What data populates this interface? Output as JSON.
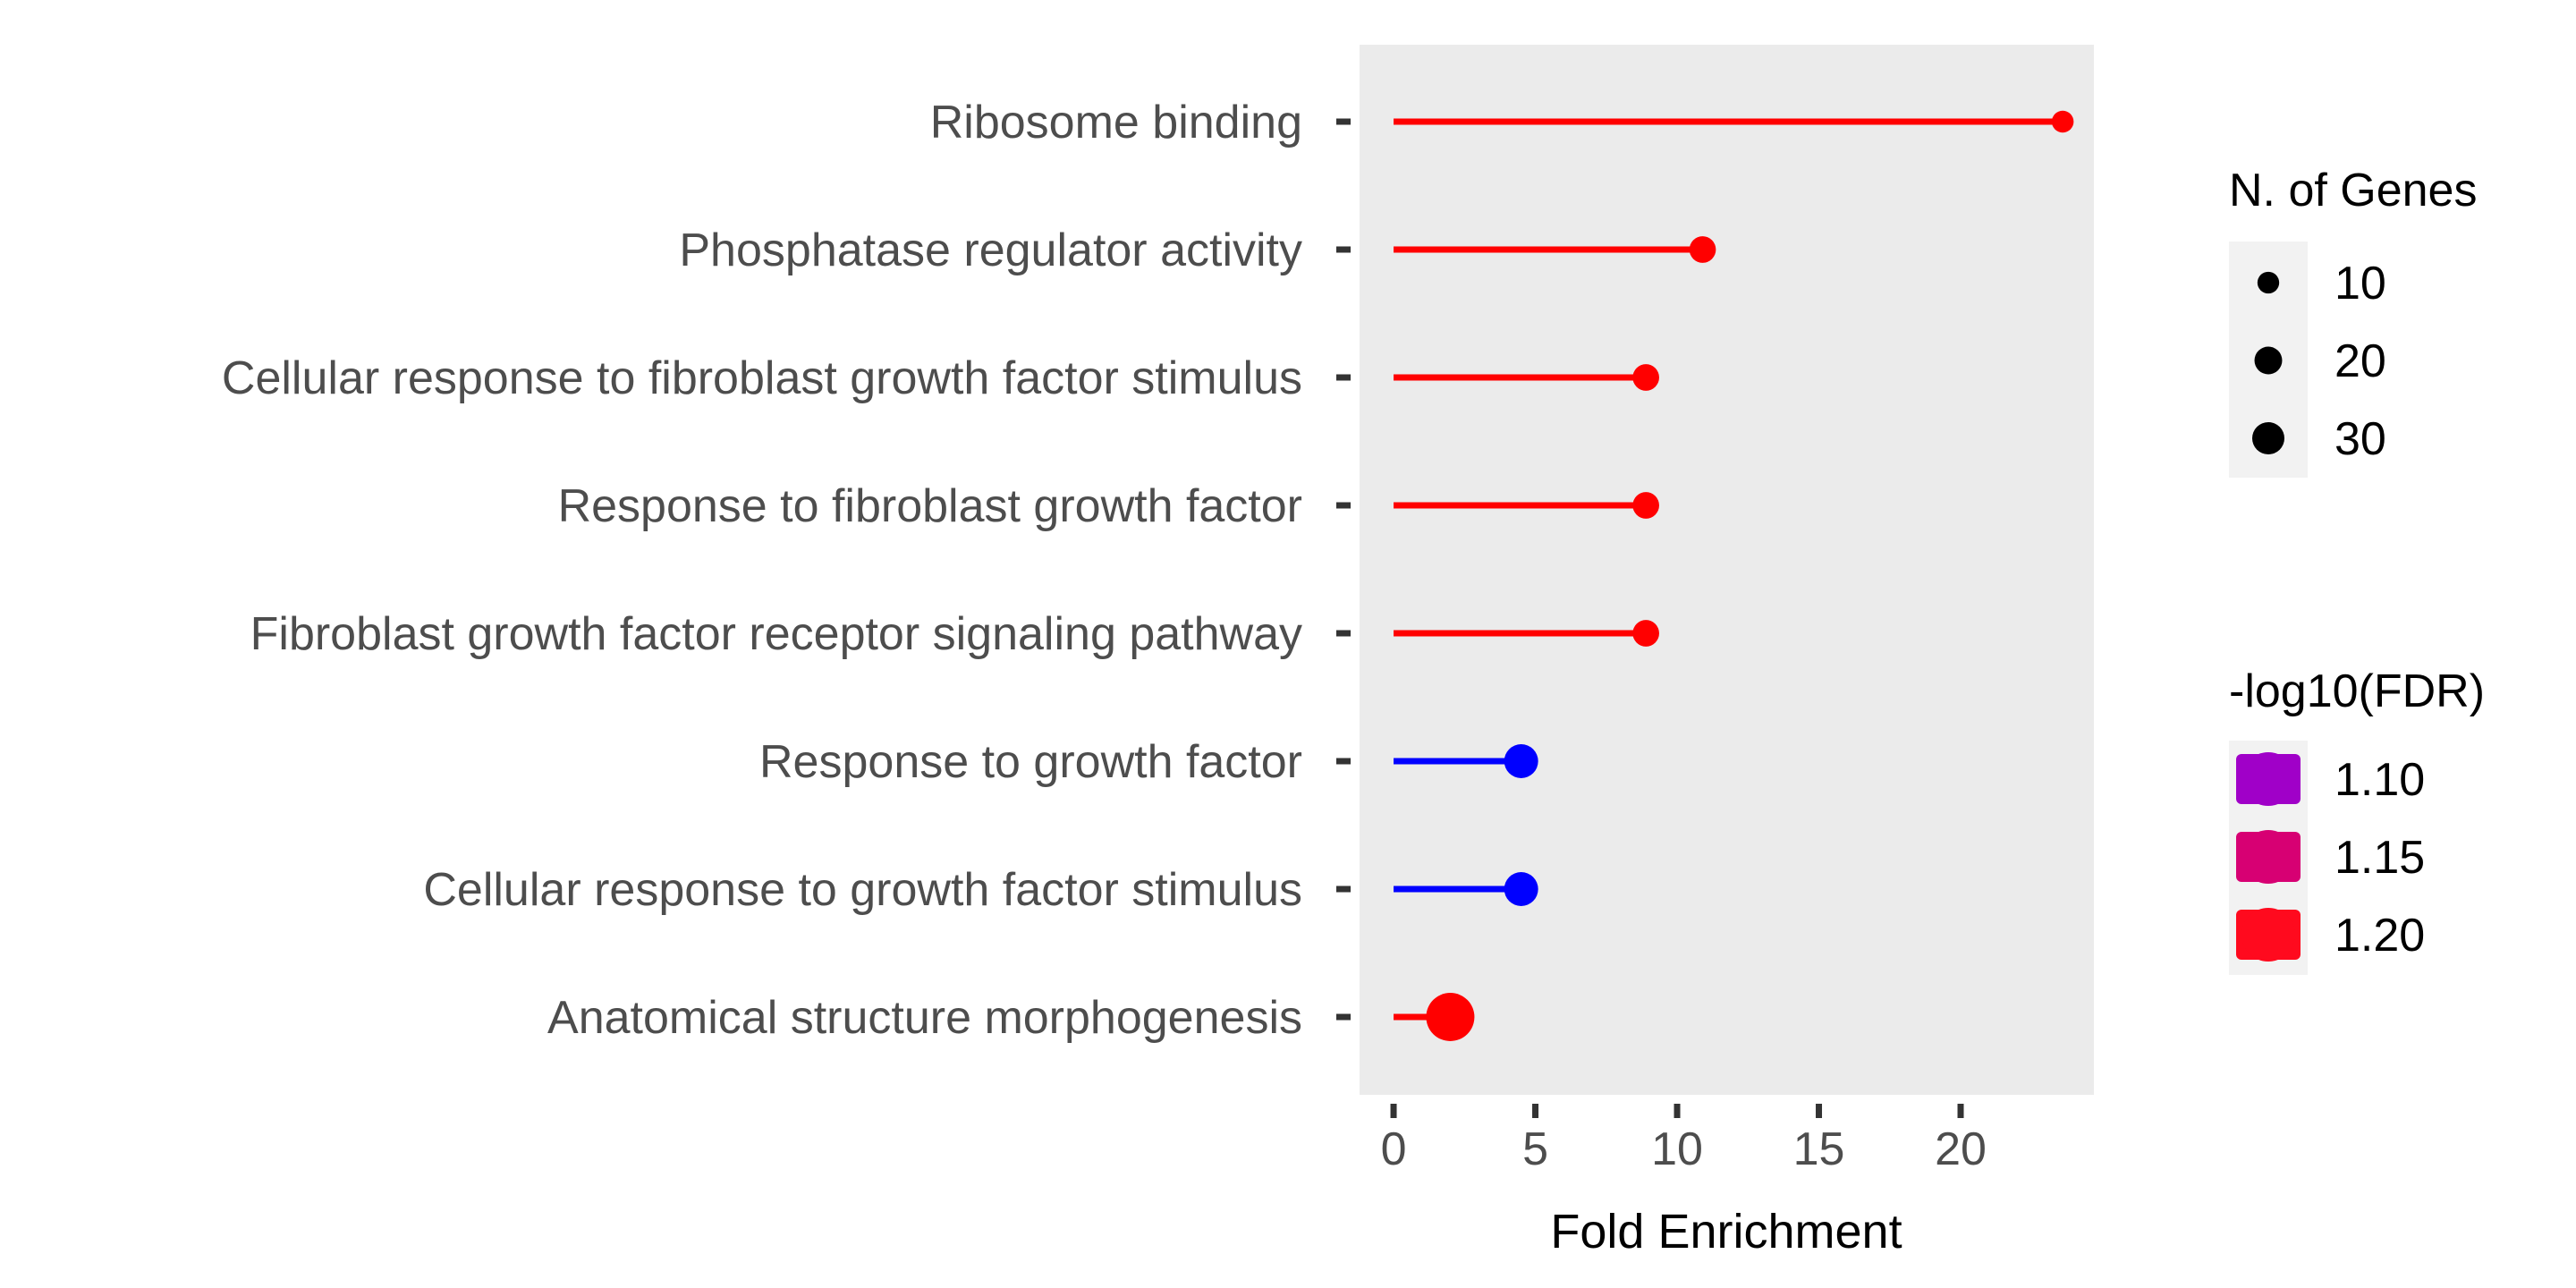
{
  "chart_data": {
    "type": "lollipop",
    "xlabel": "Fold Enrichment",
    "xlim": [
      -1.2,
      24.7
    ],
    "xticks": [
      0,
      5,
      10,
      15,
      20
    ],
    "xtick_labels": [
      "0",
      "5",
      "10",
      "15",
      "20"
    ],
    "panel_background": "#ebebeb",
    "categories": [
      "Ribosome binding",
      "Phosphatase regulator activity",
      "Cellular response to fibroblast growth factor stimulus",
      "Response to fibroblast growth factor",
      "Fibroblast growth factor receptor signaling pathway",
      "Response to growth factor",
      "Cellular response to growth factor stimulus",
      "Anatomical structure morphogenesis"
    ],
    "fold_enrichment": [
      23.6,
      10.9,
      8.9,
      8.9,
      8.9,
      4.5,
      4.5,
      2.0
    ],
    "n_genes": [
      3,
      6,
      6,
      6,
      6,
      13,
      13,
      34
    ],
    "neg_log10_fdr": [
      1.22,
      1.22,
      1.22,
      1.22,
      1.22,
      1.05,
      1.05,
      1.22
    ],
    "colors": [
      "#ff0000",
      "#ff0000",
      "#ff0000",
      "#ff0000",
      "#ff0000",
      "#0000ff",
      "#0000ff",
      "#ff0000"
    ],
    "legend_size": {
      "title": "N. of Genes",
      "labels": [
        "10",
        "20",
        "30"
      ],
      "values": [
        10,
        20,
        30
      ],
      "position": "right"
    },
    "legend_color": {
      "title": "-log10(FDR)",
      "labels": [
        "1.10",
        "1.15",
        "1.20"
      ],
      "colors": [
        "#a000c8",
        "#d70073",
        "#ff0a1e"
      ],
      "position": "right"
    }
  }
}
